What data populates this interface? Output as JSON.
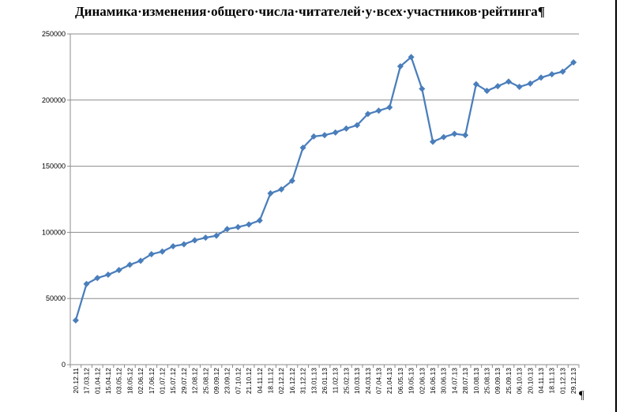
{
  "chart_data": {
    "type": "line",
    "title": "Динамика·изменения·общего·числа·читателей·у·всех·участников·рейтинга¶",
    "xlabel": "",
    "ylabel": "",
    "ylim": [
      0,
      250000
    ],
    "yticks": [
      0,
      50000,
      100000,
      150000,
      200000,
      250000
    ],
    "ytick_labels": [
      "0",
      "50000",
      "100000",
      "150000",
      "200000",
      "250000"
    ],
    "grid": "horizontal",
    "legend": "none",
    "series_color": "#4a7ebb",
    "categories": [
      "20.12.11",
      "17.03.12",
      "01.04.12",
      "15.04.12",
      "03.05.12",
      "18.05.12",
      "02.06.12",
      "17.06.12",
      "01.07.12",
      "15.07.12",
      "29.07.12",
      "12.08.12",
      "25.08.12",
      "09.09.12",
      "23.09.12",
      "07.10.12",
      "21.10.12",
      "04.11.12",
      "18.11.12",
      "02.12.12",
      "16.12.12",
      "31.12.12",
      "13.01.13",
      "26.01.13",
      "11.02.13",
      "25.02.13",
      "10.03.13",
      "24.03.13",
      "07.04.13",
      "21.04.13",
      "06.05.13",
      "19.05.13",
      "02.06.13",
      "16.06.13",
      "30.06.13",
      "14.07.13",
      "28.07.13",
      "10.08.13",
      "25.08.13",
      "09.09.13",
      "25.09.13",
      "06.10.13",
      "20.10.13",
      "04.11.13",
      "18.11.13",
      "01.12.13",
      "29.12.13"
    ],
    "values": [
      33500,
      61000,
      65500,
      68000,
      71500,
      75500,
      78500,
      83500,
      85500,
      89500,
      91000,
      94000,
      96000,
      97500,
      102500,
      104000,
      106000,
      109000,
      129500,
      132500,
      139000,
      164000,
      172500,
      173500,
      175500,
      178500,
      181000,
      189500,
      192000,
      194500,
      225500,
      232500,
      208500,
      168500,
      172000,
      174500,
      173500,
      212000,
      207000,
      210500,
      214000,
      210000,
      212500,
      217000,
      219500,
      221500,
      228500
    ]
  },
  "extra": {
    "pilcrow": "¶"
  }
}
